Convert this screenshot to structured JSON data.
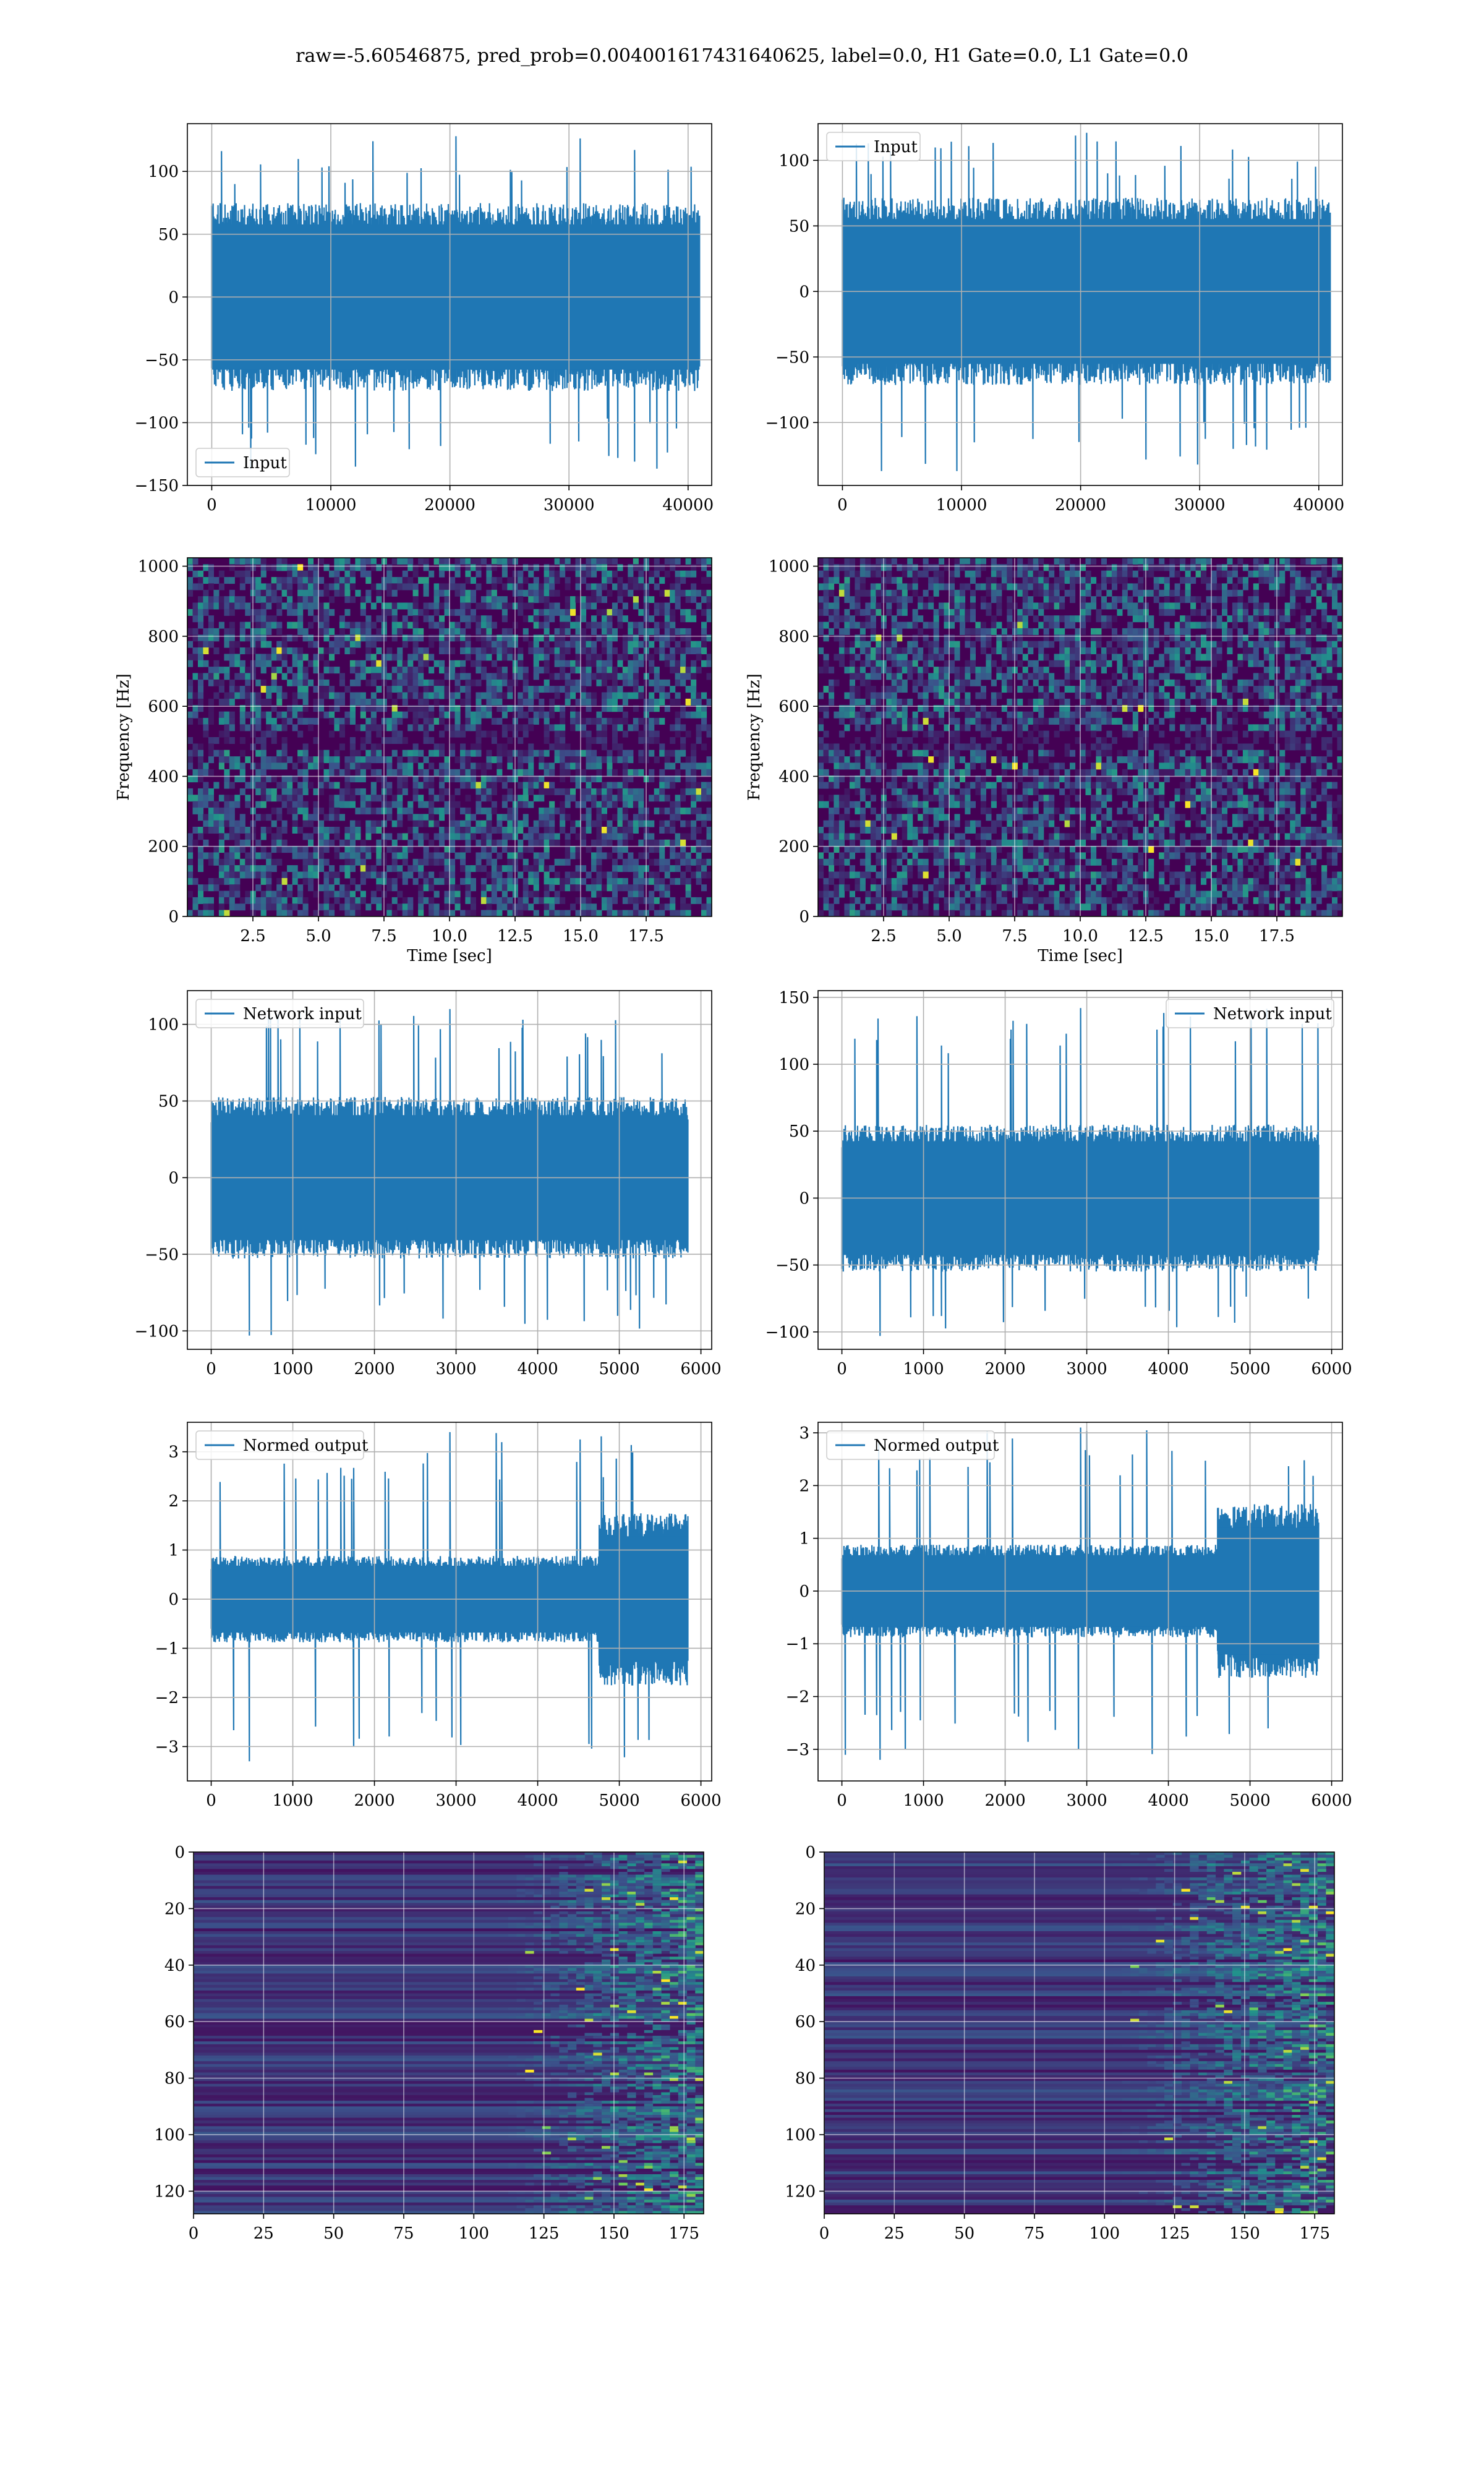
{
  "figure": {
    "suptitle": "raw=-5.60546875, pred_prob=0.004001617431640625, label=0.0, H1 Gate=0.0, L1 Gate=0.0"
  },
  "colors": {
    "line": "#1f77b4",
    "grid": "#b0b0b0",
    "viridis_low": "#440154",
    "viridis_mid": "#21918c",
    "viridis_high": "#fde725"
  },
  "chart_data": [
    {
      "id": "input-h1",
      "type": "line",
      "xlim": [
        -2048,
        41984
      ],
      "ylim": [
        -150,
        138
      ],
      "xticks": [
        0,
        10000,
        20000,
        30000,
        40000
      ],
      "yticks": [
        -150,
        -100,
        -50,
        0,
        50,
        100
      ],
      "xlabel": "",
      "ylabel": "",
      "series": [
        {
          "name": "Input",
          "x_range": [
            0,
            40960
          ],
          "band": [
            -68,
            68
          ],
          "peak": [
            -137,
            128
          ]
        }
      ],
      "legend": "lower-left",
      "grid": true
    },
    {
      "id": "input-l1",
      "type": "line",
      "xlim": [
        -2048,
        41984
      ],
      "ylim": [
        -148,
        128
      ],
      "xticks": [
        0,
        10000,
        20000,
        30000,
        40000
      ],
      "yticks": [
        -100,
        -50,
        0,
        50,
        100
      ],
      "xlabel": "",
      "ylabel": "",
      "series": [
        {
          "name": "Input",
          "x_range": [
            0,
            40960
          ],
          "band": [
            -65,
            65
          ],
          "peak": [
            -137,
            121
          ]
        }
      ],
      "legend": "upper-left",
      "grid": true
    },
    {
      "id": "spectrogram-h1",
      "type": "heatmap",
      "xlim": [
        0,
        20
      ],
      "ylim": [
        0,
        1024
      ],
      "xticks": [
        2.5,
        5.0,
        7.5,
        10.0,
        12.5,
        15.0,
        17.5
      ],
      "yticks": [
        0,
        200,
        400,
        600,
        800,
        1000
      ],
      "xlabel": "Time [sec]",
      "ylabel": "Frequency [Hz]",
      "colormap": "viridis",
      "grid": true
    },
    {
      "id": "spectrogram-l1",
      "type": "heatmap",
      "xlim": [
        0,
        20
      ],
      "ylim": [
        0,
        1024
      ],
      "xticks": [
        2.5,
        5.0,
        7.5,
        10.0,
        12.5,
        15.0,
        17.5
      ],
      "yticks": [
        0,
        200,
        400,
        600,
        800,
        1000
      ],
      "xlabel": "Time [sec]",
      "ylabel": "Frequency [Hz]",
      "colormap": "viridis",
      "grid": true
    },
    {
      "id": "network-input-h1",
      "type": "line",
      "xlim": [
        -292,
        6132
      ],
      "ylim": [
        -112,
        122
      ],
      "xticks": [
        0,
        1000,
        2000,
        3000,
        4000,
        5000,
        6000
      ],
      "yticks": [
        -100,
        -50,
        0,
        50,
        100
      ],
      "xlabel": "",
      "ylabel": "",
      "series": [
        {
          "name": "Network input",
          "x_range": [
            0,
            5840
          ],
          "band": [
            -48,
            48
          ],
          "peak": [
            -103,
            110
          ]
        }
      ],
      "legend": "upper-left",
      "grid": true
    },
    {
      "id": "network-input-l1",
      "type": "line",
      "xlim": [
        -292,
        6132
      ],
      "ylim": [
        -113,
        155
      ],
      "xticks": [
        0,
        1000,
        2000,
        3000,
        4000,
        5000,
        6000
      ],
      "yticks": [
        -100,
        -50,
        0,
        50,
        100,
        150
      ],
      "xlabel": "",
      "ylabel": "",
      "series": [
        {
          "name": "Network input",
          "x_range": [
            0,
            5840
          ],
          "band": [
            -50,
            50
          ],
          "peak": [
            -103,
            142
          ]
        }
      ],
      "legend": "upper-right",
      "grid": true
    },
    {
      "id": "normed-output-h1",
      "type": "line",
      "xlim": [
        -292,
        6132
      ],
      "ylim": [
        -3.7,
        3.6
      ],
      "xticks": [
        0,
        1000,
        2000,
        3000,
        4000,
        5000,
        6000
      ],
      "yticks": [
        -3,
        -2,
        -1,
        0,
        1,
        2,
        3
      ],
      "xlabel": "",
      "ylabel": "",
      "series": [
        {
          "name": "Normed output",
          "x_range": [
            0,
            5840
          ],
          "band": [
            -0.8,
            0.8
          ],
          "step_at": 4750,
          "band_after": [
            -1.6,
            1.6
          ],
          "peak": [
            -3.3,
            3.4
          ]
        }
      ],
      "legend": "upper-left",
      "grid": true
    },
    {
      "id": "normed-output-l1",
      "type": "line",
      "xlim": [
        -292,
        6132
      ],
      "ylim": [
        -3.6,
        3.2
      ],
      "xticks": [
        0,
        1000,
        2000,
        3000,
        4000,
        5000,
        6000
      ],
      "yticks": [
        -3,
        -2,
        -1,
        0,
        1,
        2,
        3
      ],
      "xlabel": "",
      "ylabel": "",
      "series": [
        {
          "name": "Normed output",
          "x_range": [
            0,
            5840
          ],
          "band": [
            -0.8,
            0.8
          ],
          "step_at": 4600,
          "band_after": [
            -1.5,
            1.5
          ],
          "peak": [
            -3.2,
            3.1
          ]
        }
      ],
      "legend": "upper-left",
      "grid": true
    },
    {
      "id": "feature-map-h1",
      "type": "heatmap",
      "xlim": [
        0,
        182
      ],
      "ylim": [
        128,
        0
      ],
      "xticks": [
        0,
        25,
        50,
        75,
        100,
        125,
        150,
        175
      ],
      "yticks": [
        0,
        20,
        40,
        60,
        80,
        100,
        120
      ],
      "xlabel": "",
      "ylabel": "",
      "colormap": "viridis",
      "activity_from": 110,
      "grid": true
    },
    {
      "id": "feature-map-l1",
      "type": "heatmap",
      "xlim": [
        0,
        182
      ],
      "ylim": [
        128,
        0
      ],
      "xticks": [
        0,
        25,
        50,
        75,
        100,
        125,
        150,
        175
      ],
      "yticks": [
        0,
        20,
        40,
        60,
        80,
        100,
        120
      ],
      "xlabel": "",
      "ylabel": "",
      "colormap": "viridis",
      "activity_from": 105,
      "grid": true
    }
  ]
}
